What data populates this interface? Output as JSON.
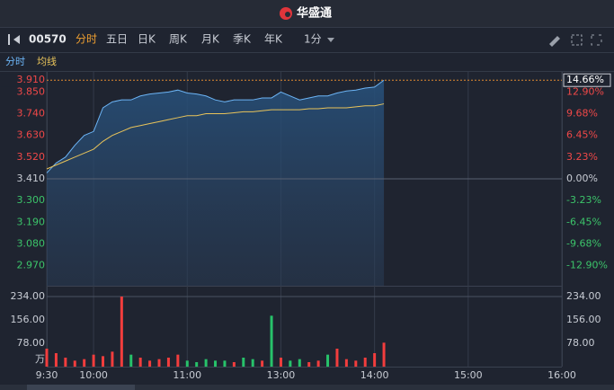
{
  "header": {
    "brand": "华盛通"
  },
  "toolbar": {
    "code": "00570",
    "tabs": [
      "分时",
      "五日",
      "日K",
      "周K",
      "月K",
      "季K",
      "年K"
    ],
    "interval": "1分"
  },
  "chart_data": [
    {
      "type": "line",
      "x": [
        0,
        6,
        12,
        18,
        24,
        30,
        36,
        42,
        48,
        54,
        60,
        66,
        72,
        78,
        84,
        90,
        96,
        102,
        108,
        114,
        120,
        126,
        132,
        138,
        144,
        150,
        156,
        162,
        168,
        174,
        180,
        186,
        192,
        198,
        204,
        210,
        216
      ],
      "xlim": [
        0,
        330
      ],
      "xticks": [
        {
          "value": 0,
          "label": "9:30"
        },
        {
          "value": 30,
          "label": "10:00"
        },
        {
          "value": 90,
          "label": "11:00"
        },
        {
          "value": 150,
          "label": "13:00"
        },
        {
          "value": 210,
          "label": "14:00"
        },
        {
          "value": 270,
          "label": "15:00"
        },
        {
          "value": 330,
          "label": "16:00"
        }
      ],
      "ylim": [
        2.868,
        3.952
      ],
      "yticks": [
        {
          "value": 3.85,
          "label": "3.850"
        },
        {
          "value": 3.74,
          "label": "3.740"
        },
        {
          "value": 3.63,
          "label": "3.630"
        },
        {
          "value": 3.52,
          "label": "3.520"
        },
        {
          "value": 3.41,
          "label": "3.410"
        },
        {
          "value": 3.3,
          "label": "3.300"
        },
        {
          "value": 3.19,
          "label": "3.190"
        },
        {
          "value": 3.08,
          "label": "3.080"
        },
        {
          "value": 2.97,
          "label": "2.970"
        }
      ],
      "y2lim": [
        -15.89,
        15.89
      ],
      "y2ticks": [
        {
          "value": 12.9,
          "label": "12.90%"
        },
        {
          "value": 9.68,
          "label": "9.68%"
        },
        {
          "value": 6.45,
          "label": "6.45%"
        },
        {
          "value": 3.23,
          "label": "3.23%"
        },
        {
          "value": 0,
          "label": "0.00%"
        },
        {
          "value": -3.23,
          "label": "-3.23%"
        },
        {
          "value": -6.45,
          "label": "-6.45%"
        },
        {
          "value": -9.68,
          "label": "-9.68%"
        },
        {
          "value": -12.9,
          "label": "-12.90%"
        }
      ],
      "last_price": {
        "value": 3.91,
        "label": "3.910"
      },
      "last_change": {
        "value": 14.66,
        "label": "14.66%"
      },
      "series": [
        {
          "name": "分时",
          "color": "#6cb4f5",
          "values": [
            3.44,
            3.49,
            3.52,
            3.58,
            3.63,
            3.65,
            3.77,
            3.8,
            3.81,
            3.81,
            3.83,
            3.84,
            3.845,
            3.85,
            3.86,
            3.845,
            3.84,
            3.83,
            3.81,
            3.8,
            3.81,
            3.81,
            3.81,
            3.82,
            3.82,
            3.85,
            3.83,
            3.81,
            3.82,
            3.83,
            3.83,
            3.845,
            3.855,
            3.86,
            3.87,
            3.875,
            3.91
          ]
        },
        {
          "name": "均线",
          "color": "#e8c35a",
          "values": [
            3.46,
            3.48,
            3.5,
            3.52,
            3.54,
            3.56,
            3.6,
            3.63,
            3.65,
            3.67,
            3.68,
            3.69,
            3.7,
            3.71,
            3.72,
            3.73,
            3.73,
            3.74,
            3.74,
            3.74,
            3.745,
            3.75,
            3.75,
            3.755,
            3.76,
            3.76,
            3.76,
            3.76,
            3.765,
            3.765,
            3.77,
            3.77,
            3.77,
            3.775,
            3.78,
            3.78,
            3.79
          ]
        }
      ]
    },
    {
      "type": "bar",
      "x": [
        0,
        6,
        12,
        18,
        24,
        30,
        36,
        42,
        48,
        54,
        60,
        66,
        72,
        78,
        84,
        90,
        96,
        102,
        108,
        114,
        120,
        126,
        132,
        138,
        144,
        150,
        156,
        162,
        168,
        174,
        180,
        186,
        192,
        198,
        204,
        210,
        216
      ],
      "values": [
        60,
        45,
        30,
        20,
        25,
        40,
        35,
        50,
        234,
        40,
        30,
        20,
        25,
        30,
        40,
        20,
        15,
        25,
        20,
        20,
        15,
        30,
        25,
        20,
        170,
        30,
        20,
        25,
        15,
        20,
        40,
        60,
        25,
        20,
        30,
        45,
        80
      ],
      "colors": [
        "#f23d3d",
        "#f23d3d",
        "#f23d3d",
        "#f23d3d",
        "#f23d3d",
        "#f23d3d",
        "#f23d3d",
        "#f23d3d",
        "#f23d3d",
        "#27c26a",
        "#f23d3d",
        "#f23d3d",
        "#f23d3d",
        "#f23d3d",
        "#f23d3d",
        "#27c26a",
        "#27c26a",
        "#27c26a",
        "#27c26a",
        "#27c26a",
        "#f23d3d",
        "#27c26a",
        "#27c26a",
        "#f23d3d",
        "#27c26a",
        "#f23d3d",
        "#27c26a",
        "#27c26a",
        "#f23d3d",
        "#f23d3d",
        "#27c26a",
        "#f23d3d",
        "#f23d3d",
        "#f23d3d",
        "#f23d3d",
        "#f23d3d",
        "#f23d3d"
      ],
      "ylim": [
        0,
        234
      ],
      "yticks": [
        {
          "value": 234,
          "label": "234.00"
        },
        {
          "value": 156,
          "label": "156.00"
        },
        {
          "value": 78,
          "label": "78.00"
        }
      ],
      "unit": "万"
    }
  ]
}
